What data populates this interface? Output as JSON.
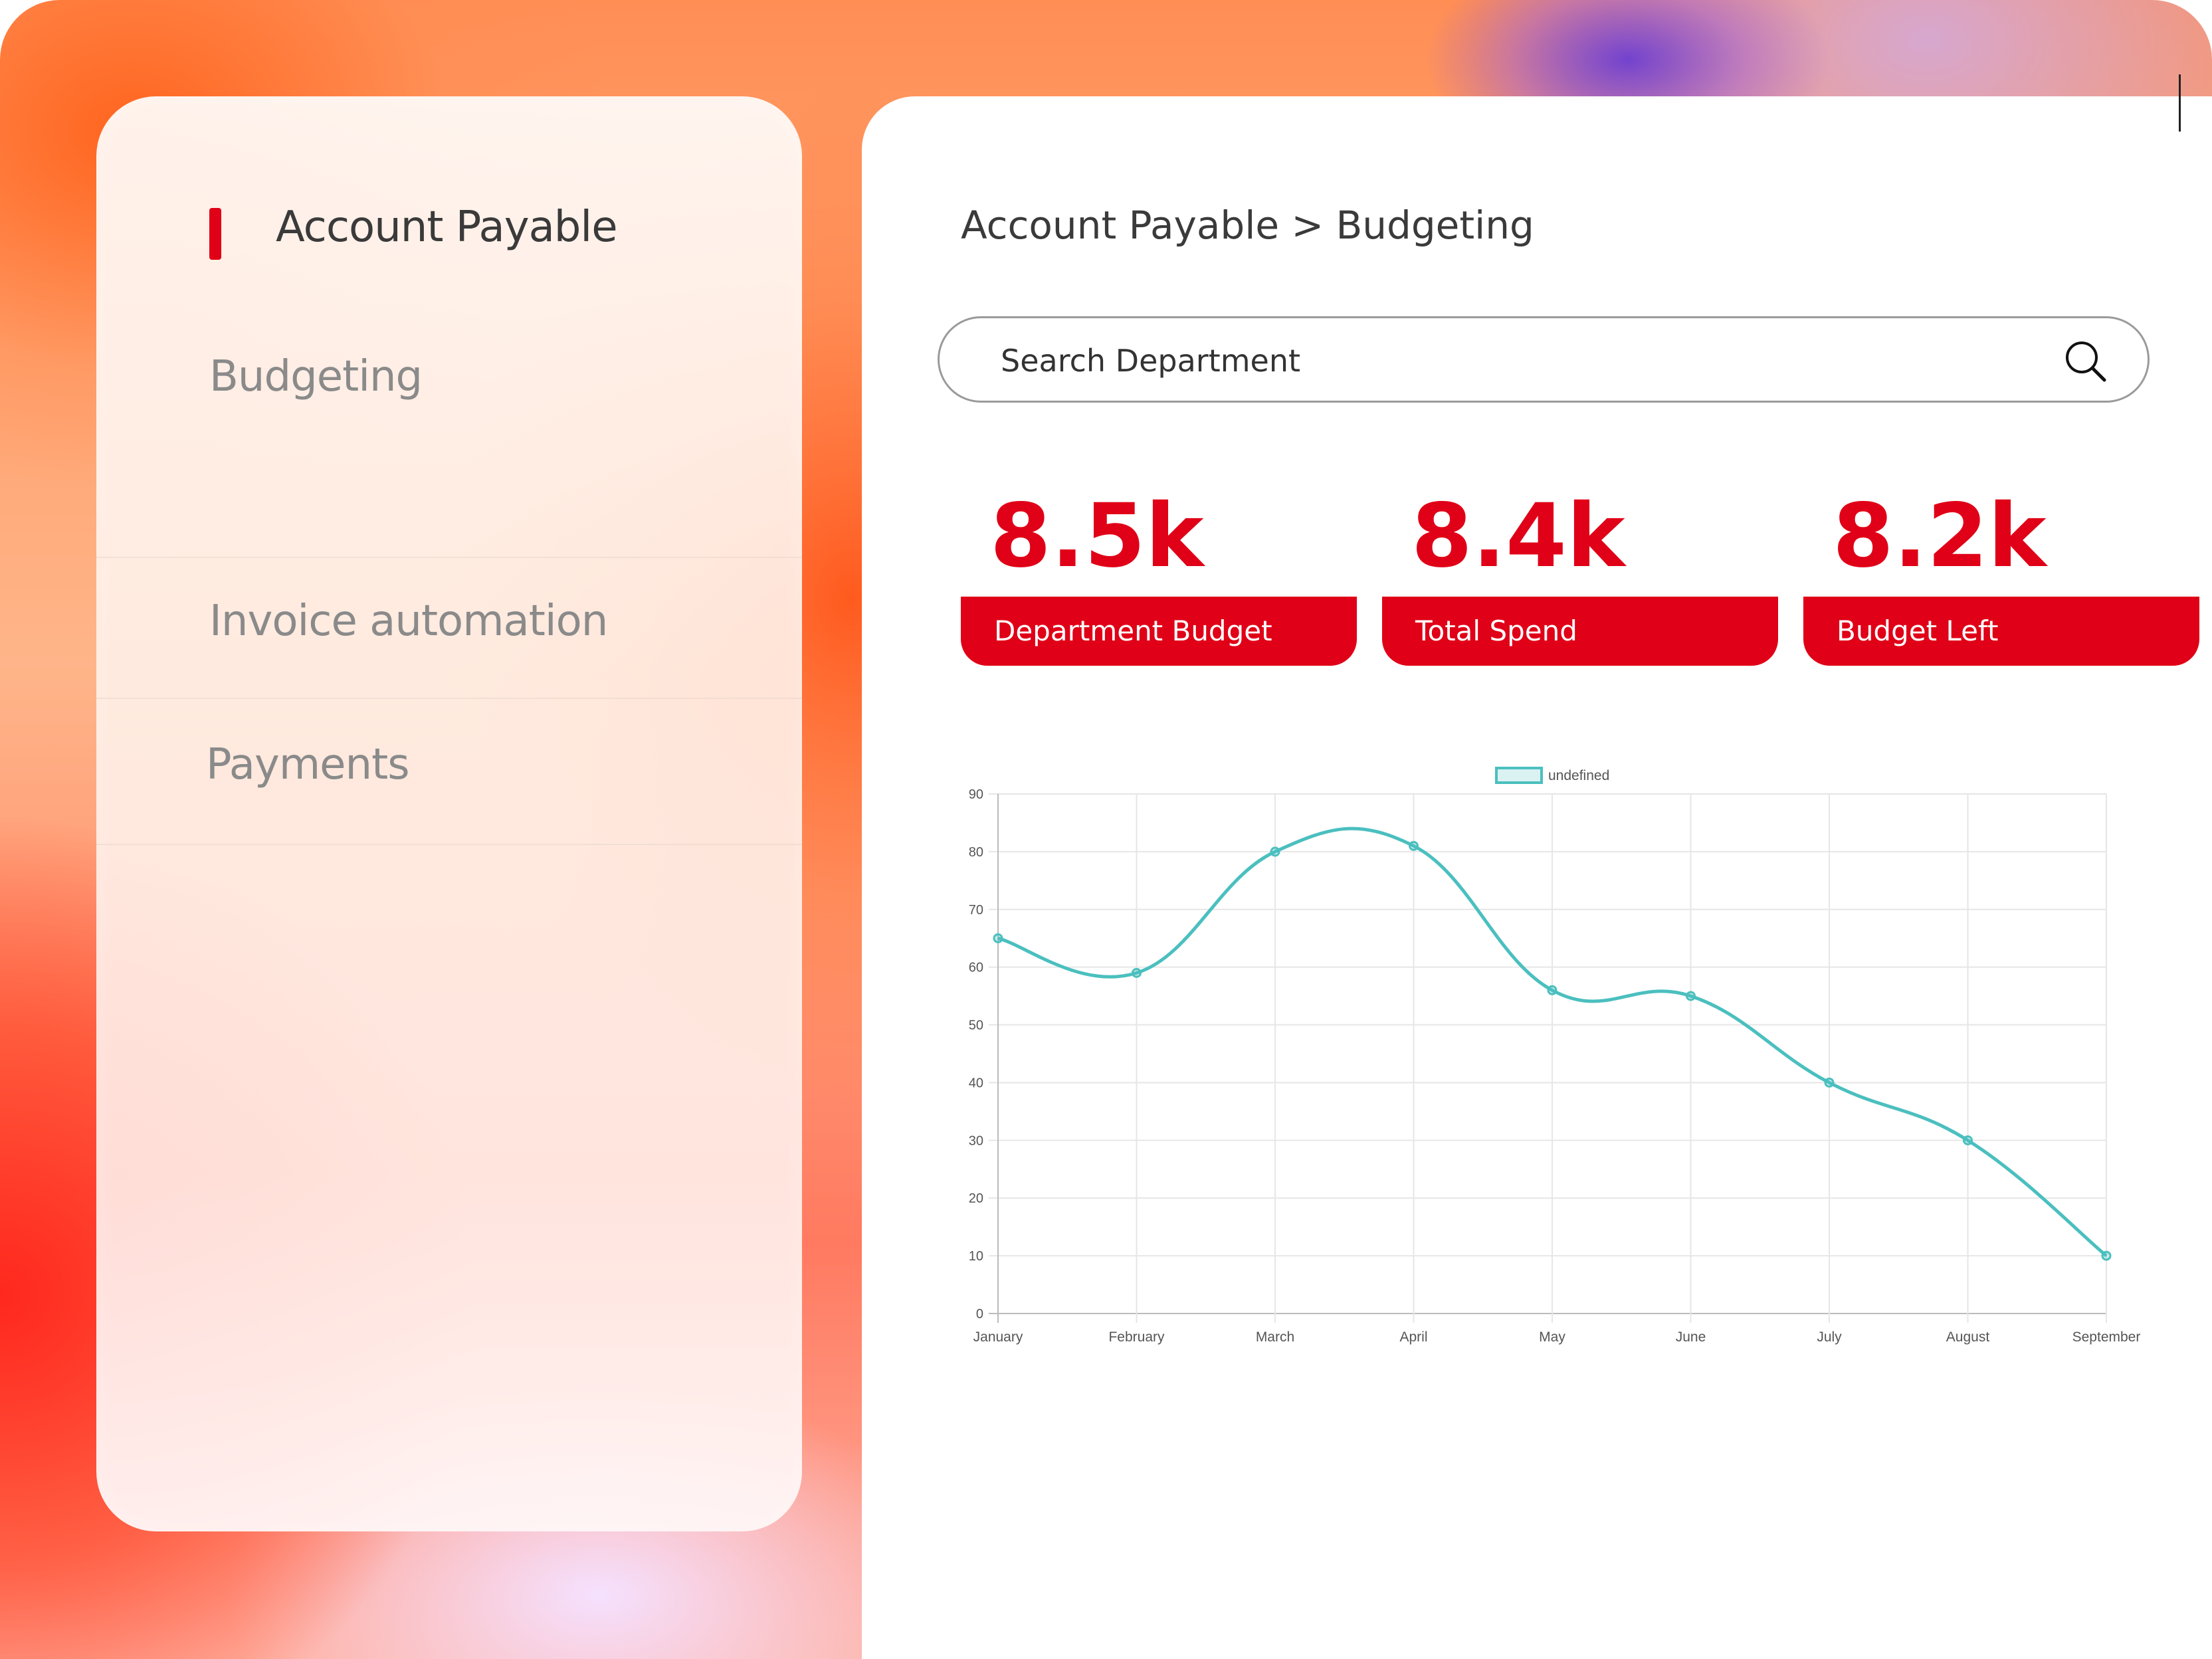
{
  "sidebar": {
    "items": [
      {
        "label": "Account Payable",
        "active": true
      },
      {
        "label": "Budgeting",
        "active": false
      },
      {
        "label": "Invoice automation",
        "active": false
      },
      {
        "label": "Payments",
        "active": false
      }
    ]
  },
  "header": {
    "breadcrumb": "Account Payable > Budgeting"
  },
  "search": {
    "placeholder": "Search Department",
    "value": ""
  },
  "stats": [
    {
      "value": "8.5k",
      "label": "Department Budget"
    },
    {
      "value": "8.4k",
      "label": "Total Spend"
    },
    {
      "value": "8.2k",
      "label": "Budget Left"
    }
  ],
  "colors": {
    "accent": "#e00017",
    "line": "#4bbfbf"
  },
  "icons": {
    "search": "search-icon"
  },
  "chart_data": {
    "type": "line",
    "categories": [
      "January",
      "February",
      "March",
      "April",
      "May",
      "June",
      "July",
      "August",
      "September"
    ],
    "series": [
      {
        "name": "undefined",
        "values": [
          65,
          59,
          80,
          81,
          56,
          55,
          40,
          30,
          10
        ]
      }
    ],
    "yticks": [
      0,
      10,
      20,
      30,
      40,
      50,
      60,
      70,
      80,
      90
    ],
    "ylim": [
      0,
      90
    ],
    "legend": "top-center",
    "grid": true
  }
}
